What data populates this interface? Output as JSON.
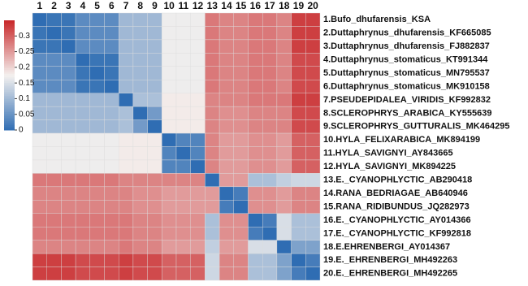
{
  "chart_data": {
    "type": "heatmap",
    "categories": [
      "1",
      "2",
      "3",
      "4",
      "5",
      "6",
      "7",
      "8",
      "9",
      "10",
      "11",
      "12",
      "13",
      "14",
      "15",
      "16",
      "17",
      "18",
      "19",
      "20"
    ],
    "row_labels": [
      "1.Bufo_dhufarensis_KSA",
      "2.Duttaphrynus_dhufarensis_KF665085",
      "3.Duttaphrynus_dhufarensis_FJ882837",
      "4.Duttaphrynus_stomaticus_KT991344",
      "5.Duttaphrynus_stomaticus_MN795537",
      "6.Duttaphrynus_stomaticus_MK910158",
      "7.PSEUDEPIDALEA_VIRIDIS_KF992832",
      "8.SCLEROPHRYS_ARABICA_KY555639",
      "9.SCLEROPHRYS_GUTTURALIS_MK464295",
      "10.HYLA_FELIXARABICA_MK894199",
      "11.HYLA_SAVIGNYI_AY843665",
      "12.HYLA_SAVIGNYI_MK894225",
      "13.E._CYANOPHLYCTIC_AB290418",
      "14.RANA_BEDRIAGAE_AB640946",
      "15.RANA_RIDIBUNDUS_JQ282973",
      "16.E._CYANOPHLYCTIC_AY014366",
      "17.E._CYANOPHLYCTIC_KF992818",
      "18.E.EHRENBERGI_AY014367",
      "19.E._EHRENBERGI_MH492263",
      "20.E._EHRENBERGI_MH492265"
    ],
    "values": [
      [
        0,
        0.01,
        0.01,
        0.04,
        0.04,
        0.04,
        0.1,
        0.1,
        0.1,
        0.17,
        0.17,
        0.17,
        0.28,
        0.27,
        0.27,
        0.28,
        0.28,
        0.27,
        0.33,
        0.33
      ],
      [
        0.01,
        0,
        0.01,
        0.04,
        0.04,
        0.04,
        0.1,
        0.1,
        0.1,
        0.17,
        0.17,
        0.17,
        0.28,
        0.27,
        0.27,
        0.28,
        0.28,
        0.27,
        0.33,
        0.33
      ],
      [
        0.01,
        0.01,
        0,
        0.04,
        0.04,
        0.04,
        0.1,
        0.1,
        0.1,
        0.17,
        0.17,
        0.17,
        0.28,
        0.27,
        0.27,
        0.28,
        0.28,
        0.27,
        0.33,
        0.33
      ],
      [
        0.04,
        0.04,
        0.04,
        0,
        0.01,
        0.01,
        0.1,
        0.1,
        0.1,
        0.17,
        0.17,
        0.17,
        0.28,
        0.27,
        0.27,
        0.28,
        0.28,
        0.27,
        0.32,
        0.32
      ],
      [
        0.04,
        0.04,
        0.04,
        0.01,
        0,
        0.01,
        0.1,
        0.1,
        0.1,
        0.17,
        0.17,
        0.17,
        0.28,
        0.27,
        0.27,
        0.28,
        0.28,
        0.27,
        0.32,
        0.32
      ],
      [
        0.04,
        0.04,
        0.04,
        0.01,
        0.01,
        0,
        0.1,
        0.1,
        0.1,
        0.17,
        0.17,
        0.17,
        0.28,
        0.27,
        0.27,
        0.28,
        0.28,
        0.27,
        0.32,
        0.32
      ],
      [
        0.1,
        0.1,
        0.1,
        0.1,
        0.1,
        0.1,
        0,
        0.11,
        0.11,
        0.18,
        0.18,
        0.18,
        0.27,
        0.27,
        0.27,
        0.28,
        0.28,
        0.28,
        0.33,
        0.33
      ],
      [
        0.1,
        0.1,
        0.1,
        0.1,
        0.1,
        0.1,
        0.11,
        0,
        0.06,
        0.18,
        0.18,
        0.18,
        0.27,
        0.26,
        0.26,
        0.27,
        0.27,
        0.27,
        0.32,
        0.32
      ],
      [
        0.1,
        0.1,
        0.1,
        0.1,
        0.1,
        0.1,
        0.11,
        0.06,
        0,
        0.18,
        0.18,
        0.18,
        0.27,
        0.26,
        0.26,
        0.27,
        0.27,
        0.27,
        0.32,
        0.32
      ],
      [
        0.17,
        0.17,
        0.17,
        0.17,
        0.17,
        0.17,
        0.18,
        0.18,
        0.18,
        0,
        0.03,
        0.03,
        0.27,
        0.25,
        0.25,
        0.26,
        0.26,
        0.25,
        0.3,
        0.3
      ],
      [
        0.17,
        0.17,
        0.17,
        0.17,
        0.17,
        0.17,
        0.18,
        0.18,
        0.18,
        0.03,
        0,
        0.03,
        0.27,
        0.25,
        0.25,
        0.26,
        0.26,
        0.25,
        0.3,
        0.3
      ],
      [
        0.17,
        0.17,
        0.17,
        0.17,
        0.17,
        0.17,
        0.18,
        0.18,
        0.18,
        0.03,
        0.03,
        0,
        0.27,
        0.25,
        0.25,
        0.26,
        0.26,
        0.25,
        0.3,
        0.3
      ],
      [
        0.28,
        0.28,
        0.28,
        0.28,
        0.28,
        0.28,
        0.27,
        0.27,
        0.27,
        0.27,
        0.27,
        0.27,
        0,
        0.25,
        0.25,
        0.11,
        0.11,
        0.13,
        0.14,
        0.14
      ],
      [
        0.27,
        0.27,
        0.27,
        0.27,
        0.27,
        0.27,
        0.27,
        0.26,
        0.26,
        0.25,
        0.25,
        0.25,
        0.25,
        0,
        0.02,
        0.26,
        0.26,
        0.25,
        0.27,
        0.27
      ],
      [
        0.27,
        0.27,
        0.27,
        0.27,
        0.27,
        0.27,
        0.27,
        0.26,
        0.26,
        0.25,
        0.25,
        0.25,
        0.25,
        0.02,
        0,
        0.26,
        0.26,
        0.25,
        0.27,
        0.27
      ],
      [
        0.28,
        0.28,
        0.28,
        0.28,
        0.28,
        0.28,
        0.28,
        0.27,
        0.27,
        0.26,
        0.26,
        0.26,
        0.11,
        0.26,
        0.26,
        0,
        0.02,
        0.15,
        0.11,
        0.11
      ],
      [
        0.28,
        0.28,
        0.28,
        0.28,
        0.28,
        0.28,
        0.28,
        0.27,
        0.27,
        0.26,
        0.26,
        0.26,
        0.11,
        0.26,
        0.26,
        0.02,
        0,
        0.15,
        0.11,
        0.11
      ],
      [
        0.27,
        0.27,
        0.27,
        0.27,
        0.27,
        0.27,
        0.28,
        0.27,
        0.27,
        0.25,
        0.25,
        0.25,
        0.13,
        0.25,
        0.25,
        0.15,
        0.15,
        0,
        0.07,
        0.07
      ],
      [
        0.33,
        0.33,
        0.33,
        0.32,
        0.32,
        0.32,
        0.33,
        0.32,
        0.32,
        0.3,
        0.3,
        0.3,
        0.14,
        0.27,
        0.27,
        0.11,
        0.11,
        0.07,
        0,
        0.02
      ],
      [
        0.33,
        0.33,
        0.33,
        0.32,
        0.32,
        0.32,
        0.33,
        0.32,
        0.32,
        0.3,
        0.3,
        0.3,
        0.14,
        0.27,
        0.27,
        0.11,
        0.11,
        0.07,
        0.02,
        0
      ]
    ],
    "zlim": [
      0,
      0.35
    ],
    "zticks": [
      0,
      0.05,
      0.1,
      0.15,
      0.2,
      0.25,
      0.3
    ],
    "colors": [
      "#2f6db3",
      "#f4f1ef",
      "#c8282a"
    ]
  }
}
